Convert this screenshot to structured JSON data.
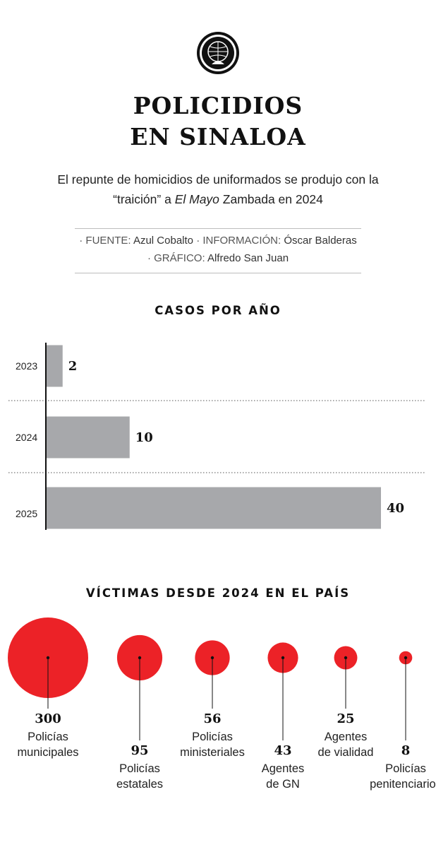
{
  "header": {
    "title_line1": "POLICIDIOS",
    "title_line2": "EN SINALOA",
    "subtitle_line1": "El repunte de homicidios de uniformados se produjo con la",
    "subtitle_line2_pre": "“traición” a ",
    "subtitle_line2_em": "El Mayo",
    "subtitle_line2_post": " Zambada en 2024"
  },
  "credits": {
    "source_label": "· FUENTE:",
    "source_value": "Azul Cobalto",
    "info_label": "· INFORMACIÓN:",
    "info_value": "Óscar Balderas",
    "graphic_label": "· GRÁFICO:",
    "graphic_value": "Alfredo San Juan"
  },
  "colors": {
    "bar": "#a7a8ab",
    "bubble": "#ec2227",
    "axis": "#111111"
  },
  "chart_data": [
    {
      "type": "bar",
      "orientation": "horizontal",
      "title": "CASOS POR AÑO",
      "categories": [
        "2023",
        "2024",
        "2025"
      ],
      "values": [
        2,
        10,
        40
      ],
      "xlim": [
        0,
        40
      ],
      "grid": false
    },
    {
      "type": "bubble",
      "title": "VÍCTIMAS DESDE 2024 EN EL PAÍS",
      "categories": [
        {
          "label_line1": "Policías",
          "label_line2": "municipales"
        },
        {
          "label_line1": "Policías",
          "label_line2": "estatales"
        },
        {
          "label_line1": "Policías",
          "label_line2": "ministeriales"
        },
        {
          "label_line1": "Agentes",
          "label_line2": "de GN"
        },
        {
          "label_line1": "Agentes",
          "label_line2": "de vialidad"
        },
        {
          "label_line1": "Policías",
          "label_line2": "penitenciarios"
        }
      ],
      "values": [
        300,
        95,
        56,
        43,
        25,
        8
      ]
    }
  ]
}
